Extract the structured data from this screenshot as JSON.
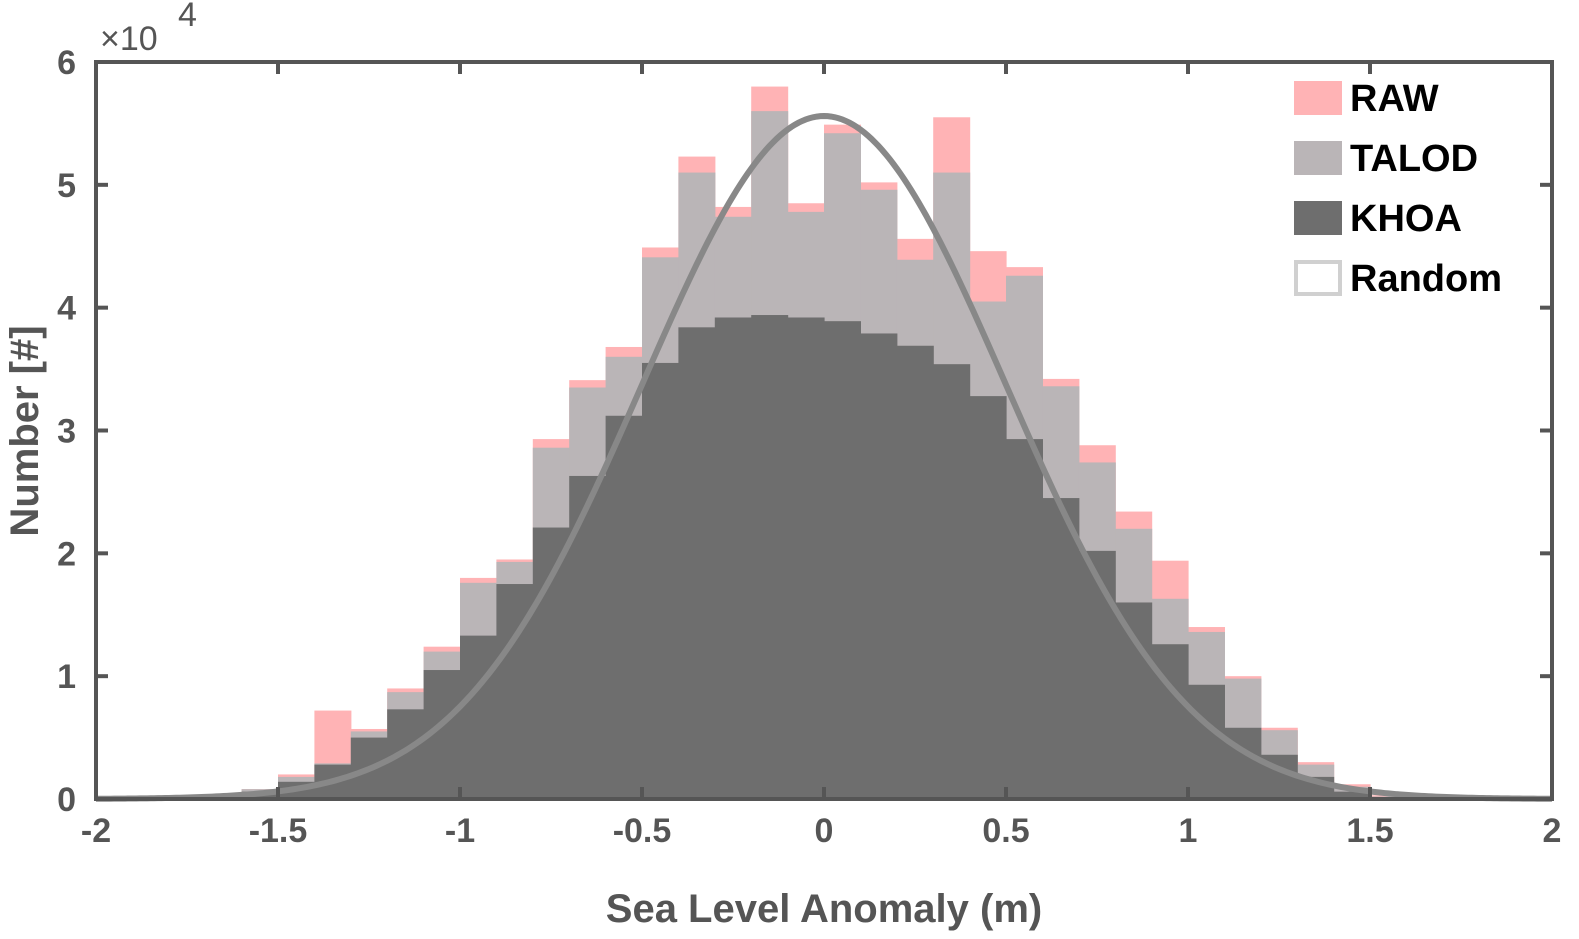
{
  "chart_data": {
    "type": "bar",
    "xlabel": "Sea Level Anomaly (m)",
    "ylabel": "Number [#]",
    "y_exponent_base": "×10",
    "y_exponent_power": "4",
    "xlim": [
      -2,
      2
    ],
    "ylim": [
      0,
      6
    ],
    "x_ticks": [
      "-2",
      "-1.5",
      "-1",
      "-0.5",
      "0",
      "0.5",
      "1",
      "1.5",
      "2"
    ],
    "y_ticks": [
      "0",
      "1",
      "2",
      "3",
      "4",
      "5",
      "6"
    ],
    "grid": false,
    "legend_position": "top-right",
    "bin_edges": [
      -1.7,
      -1.6,
      -1.5,
      -1.4,
      -1.3,
      -1.2,
      -1.1,
      -1.0,
      -0.9,
      -0.8,
      -0.7,
      -0.6,
      -0.5,
      -0.4,
      -0.3,
      -0.2,
      -0.1,
      0.0,
      0.1,
      0.2,
      0.3,
      0.4,
      0.5,
      0.6,
      0.7,
      0.8,
      0.9,
      1.0,
      1.1,
      1.2,
      1.3,
      1.4,
      1.5,
      1.6
    ],
    "series": [
      {
        "name": "RAW",
        "kind": "histogram",
        "color": "#ffb3b5",
        "values": [
          0.03,
          0.08,
          0.2,
          0.72,
          0.57,
          0.9,
          1.24,
          1.8,
          1.95,
          2.93,
          3.41,
          3.68,
          4.49,
          5.23,
          4.82,
          5.8,
          4.85,
          5.49,
          5.02,
          4.56,
          5.55,
          4.46,
          4.33,
          3.42,
          2.88,
          2.34,
          1.94,
          1.4,
          1.0,
          0.58,
          0.3,
          0.12,
          0.03
        ]
      },
      {
        "name": "TALOD",
        "kind": "histogram",
        "color": "#bab5b7",
        "values": [
          0.03,
          0.08,
          0.18,
          0.29,
          0.55,
          0.87,
          1.2,
          1.76,
          1.93,
          2.86,
          3.35,
          3.6,
          4.41,
          5.1,
          4.74,
          5.6,
          4.78,
          5.42,
          4.96,
          4.39,
          5.1,
          4.05,
          4.26,
          3.36,
          2.74,
          2.2,
          1.63,
          1.36,
          0.98,
          0.56,
          0.28,
          0.1,
          0.02
        ]
      },
      {
        "name": "KHOA",
        "kind": "histogram",
        "color": "#6e6e6e",
        "values": [
          0.02,
          0.06,
          0.14,
          0.28,
          0.5,
          0.73,
          1.05,
          1.33,
          1.75,
          2.21,
          2.63,
          3.12,
          3.55,
          3.84,
          3.92,
          3.94,
          3.92,
          3.89,
          3.79,
          3.69,
          3.54,
          3.28,
          2.93,
          2.45,
          2.02,
          1.6,
          1.26,
          0.93,
          0.58,
          0.36,
          0.18,
          0.06,
          0.01
        ]
      },
      {
        "name": "Random",
        "kind": "curve",
        "color": "#888888",
        "curve": {
          "peak": 5.56,
          "mean": 0.0,
          "sigma": 0.5
        }
      }
    ]
  }
}
